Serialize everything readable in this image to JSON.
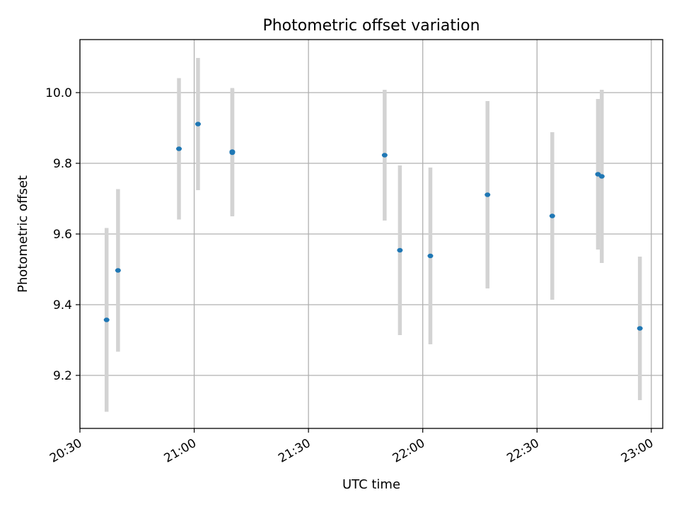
{
  "chart_data": {
    "type": "scatter",
    "title": "Photometric offset variation",
    "xlabel": "UTC time",
    "ylabel": "Photometric offset",
    "x_ticks": [
      "20:30",
      "21:00",
      "21:30",
      "22:00",
      "22:30",
      "23:00"
    ],
    "y_ticks": [
      "9.2",
      "9.4",
      "9.6",
      "9.8",
      "10.0"
    ],
    "xlim": [
      "20:30",
      "23:03"
    ],
    "ylim": [
      9.05,
      10.15
    ],
    "grid": true,
    "colors": {
      "point": "#1f77b4",
      "errorbar": "#d3d3d3",
      "grid": "#b0b0b0"
    },
    "points": [
      {
        "x": "20:37",
        "y": 9.357,
        "yerr": 0.26
      },
      {
        "x": "20:40",
        "y": 9.497,
        "yerr": 0.23
      },
      {
        "x": "20:56",
        "y": 9.841,
        "yerr": 0.2
      },
      {
        "x": "21:01",
        "y": 9.911,
        "yerr": 0.187
      },
      {
        "x": "21:10",
        "y": 9.833,
        "yerr": 0.18
      },
      {
        "x": "21:10",
        "y": 9.83,
        "yerr": 0.18
      },
      {
        "x": "21:50",
        "y": 9.823,
        "yerr": 0.185
      },
      {
        "x": "21:54",
        "y": 9.554,
        "yerr": 0.24
      },
      {
        "x": "22:02",
        "y": 9.538,
        "yerr": 0.25
      },
      {
        "x": "22:17",
        "y": 9.711,
        "yerr": 0.265
      },
      {
        "x": "22:34",
        "y": 9.651,
        "yerr": 0.237
      },
      {
        "x": "22:46",
        "y": 9.769,
        "yerr": 0.213
      },
      {
        "x": "22:47",
        "y": 9.763,
        "yerr": 0.245
      },
      {
        "x": "22:57",
        "y": 9.333,
        "yerr": 0.203
      }
    ]
  }
}
